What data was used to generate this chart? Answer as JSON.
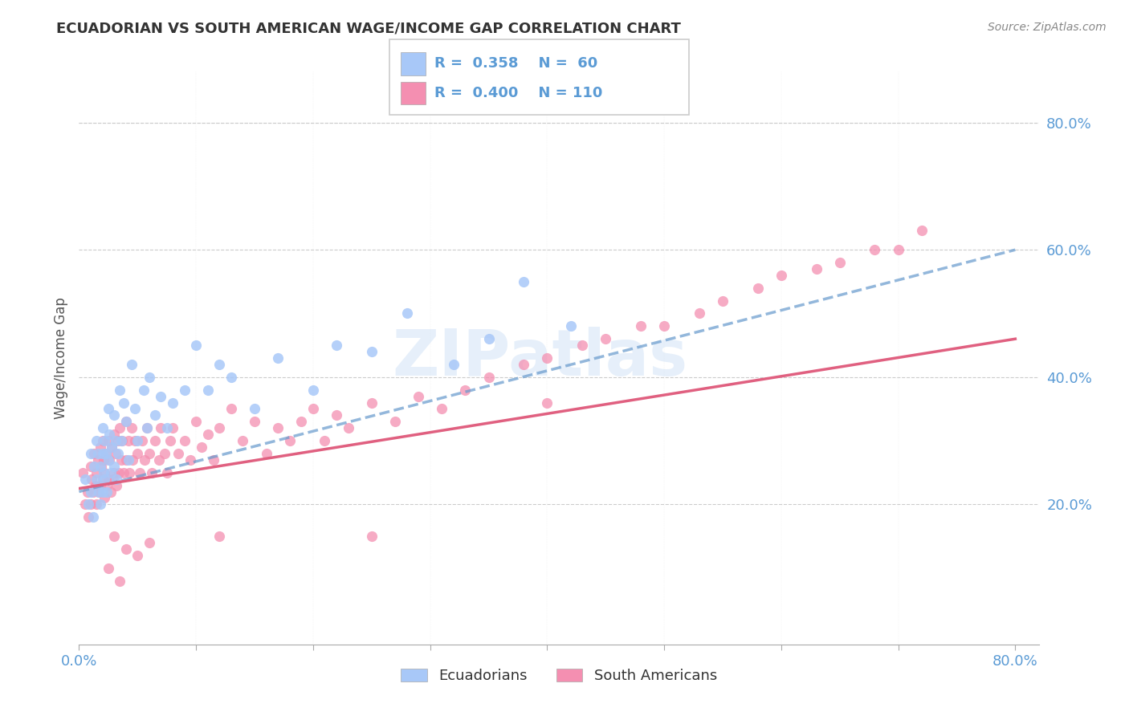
{
  "title": "ECUADORIAN VS SOUTH AMERICAN WAGE/INCOME GAP CORRELATION CHART",
  "source": "Source: ZipAtlas.com",
  "ylabel": "Wage/Income Gap",
  "axis_label_color": "#5b9bd5",
  "grid_color": "#cccccc",
  "title_color": "#333333",
  "watermark_color": "#c8ddf5",
  "background_color": "#ffffff",
  "figsize": [
    14.06,
    8.92
  ],
  "dpi": 100,
  "ecuadorians": {
    "R": 0.358,
    "N": 60,
    "color": "#a8c8f8",
    "line_color": "#6699cc",
    "line_style": "dashed"
  },
  "south_americans": {
    "R": 0.4,
    "N": 110,
    "color": "#f48fb1",
    "line_color": "#e06080",
    "line_style": "solid"
  },
  "xlim": [
    0.0,
    0.82
  ],
  "ylim": [
    -0.02,
    0.88
  ],
  "ecu_x": [
    0.005,
    0.008,
    0.01,
    0.01,
    0.012,
    0.013,
    0.015,
    0.015,
    0.016,
    0.017,
    0.018,
    0.018,
    0.02,
    0.02,
    0.02,
    0.021,
    0.022,
    0.022,
    0.023,
    0.024,
    0.025,
    0.025,
    0.026,
    0.027,
    0.028,
    0.03,
    0.03,
    0.031,
    0.032,
    0.033,
    0.035,
    0.036,
    0.038,
    0.04,
    0.042,
    0.045,
    0.048,
    0.05,
    0.055,
    0.058,
    0.06,
    0.065,
    0.07,
    0.075,
    0.08,
    0.09,
    0.1,
    0.11,
    0.12,
    0.13,
    0.15,
    0.17,
    0.2,
    0.22,
    0.25,
    0.28,
    0.32,
    0.35,
    0.38,
    0.42
  ],
  "ecu_y": [
    0.24,
    0.2,
    0.28,
    0.22,
    0.18,
    0.26,
    0.3,
    0.24,
    0.28,
    0.22,
    0.26,
    0.2,
    0.32,
    0.28,
    0.22,
    0.25,
    0.3,
    0.24,
    0.28,
    0.22,
    0.35,
    0.27,
    0.31,
    0.25,
    0.29,
    0.34,
    0.26,
    0.3,
    0.24,
    0.28,
    0.38,
    0.3,
    0.36,
    0.33,
    0.27,
    0.42,
    0.35,
    0.3,
    0.38,
    0.32,
    0.4,
    0.34,
    0.37,
    0.32,
    0.36,
    0.38,
    0.45,
    0.38,
    0.42,
    0.4,
    0.35,
    0.43,
    0.38,
    0.45,
    0.44,
    0.5,
    0.42,
    0.46,
    0.55,
    0.48
  ],
  "sa_x": [
    0.003,
    0.005,
    0.007,
    0.008,
    0.01,
    0.01,
    0.011,
    0.012,
    0.013,
    0.014,
    0.015,
    0.015,
    0.016,
    0.017,
    0.018,
    0.018,
    0.019,
    0.02,
    0.02,
    0.021,
    0.022,
    0.022,
    0.023,
    0.024,
    0.025,
    0.025,
    0.026,
    0.027,
    0.028,
    0.029,
    0.03,
    0.03,
    0.031,
    0.032,
    0.033,
    0.034,
    0.035,
    0.036,
    0.037,
    0.038,
    0.04,
    0.04,
    0.042,
    0.043,
    0.045,
    0.046,
    0.048,
    0.05,
    0.052,
    0.054,
    0.056,
    0.058,
    0.06,
    0.062,
    0.065,
    0.068,
    0.07,
    0.073,
    0.075,
    0.078,
    0.08,
    0.085,
    0.09,
    0.095,
    0.1,
    0.105,
    0.11,
    0.115,
    0.12,
    0.13,
    0.14,
    0.15,
    0.16,
    0.17,
    0.18,
    0.19,
    0.2,
    0.21,
    0.22,
    0.23,
    0.25,
    0.27,
    0.29,
    0.31,
    0.33,
    0.35,
    0.38,
    0.4,
    0.43,
    0.45,
    0.48,
    0.5,
    0.53,
    0.55,
    0.58,
    0.6,
    0.63,
    0.65,
    0.68,
    0.7,
    0.72,
    0.03,
    0.04,
    0.05,
    0.06,
    0.025,
    0.035,
    0.12,
    0.25,
    0.4
  ],
  "sa_y": [
    0.25,
    0.2,
    0.22,
    0.18,
    0.26,
    0.2,
    0.24,
    0.22,
    0.28,
    0.23,
    0.25,
    0.2,
    0.27,
    0.22,
    0.29,
    0.23,
    0.26,
    0.3,
    0.24,
    0.27,
    0.25,
    0.21,
    0.28,
    0.23,
    0.3,
    0.24,
    0.27,
    0.22,
    0.29,
    0.24,
    0.31,
    0.25,
    0.28,
    0.23,
    0.3,
    0.25,
    0.32,
    0.27,
    0.3,
    0.25,
    0.33,
    0.27,
    0.3,
    0.25,
    0.32,
    0.27,
    0.3,
    0.28,
    0.25,
    0.3,
    0.27,
    0.32,
    0.28,
    0.25,
    0.3,
    0.27,
    0.32,
    0.28,
    0.25,
    0.3,
    0.32,
    0.28,
    0.3,
    0.27,
    0.33,
    0.29,
    0.31,
    0.27,
    0.32,
    0.35,
    0.3,
    0.33,
    0.28,
    0.32,
    0.3,
    0.33,
    0.35,
    0.3,
    0.34,
    0.32,
    0.36,
    0.33,
    0.37,
    0.35,
    0.38,
    0.4,
    0.42,
    0.43,
    0.45,
    0.46,
    0.48,
    0.48,
    0.5,
    0.52,
    0.54,
    0.56,
    0.57,
    0.58,
    0.6,
    0.6,
    0.63,
    0.15,
    0.13,
    0.12,
    0.14,
    0.1,
    0.08,
    0.15,
    0.15,
    0.36
  ],
  "ecu_trend_start_y": 0.22,
  "ecu_trend_end_y": 0.6,
  "sa_trend_start_y": 0.225,
  "sa_trend_end_y": 0.46
}
